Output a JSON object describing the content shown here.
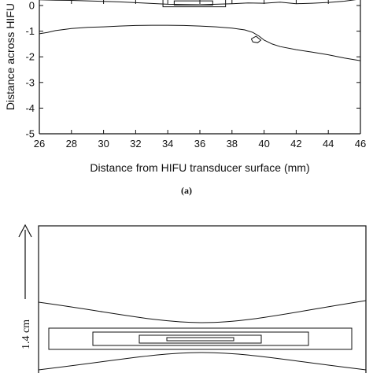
{
  "chart_data": [
    {
      "type": "line",
      "panel": "(a)",
      "title": "",
      "xlabel": "Distance from HIFU transducer surface (mm)",
      "ylabel": "Distance across HIFU",
      "xlim": [
        26,
        46
      ],
      "ylim": [
        -5,
        0.3
      ],
      "xticks": [
        26,
        28,
        30,
        32,
        34,
        36,
        38,
        40,
        42,
        44,
        46
      ],
      "yticks": [
        0,
        -1,
        -2,
        -3,
        -4,
        -5
      ],
      "grid": false,
      "legend": "none",
      "series": [
        {
          "x": [
            26,
            27,
            28,
            29,
            30,
            31,
            32,
            33,
            34,
            35,
            36,
            37,
            38,
            39,
            40,
            41,
            42,
            43,
            44,
            45,
            46
          ],
          "y": [
            0.22,
            0.21,
            0.2,
            0.18,
            0.16,
            0.14,
            0.11,
            0.08,
            0.05,
            0.04,
            0.03,
            0.05,
            0.07,
            0.1,
            0.09,
            0.13,
            0.07,
            0.09,
            0.12,
            0.17,
            0.25
          ]
        },
        {
          "x": [
            26,
            26.5,
            27,
            28,
            29,
            30,
            31,
            32,
            33,
            34,
            35,
            36,
            37,
            38,
            38.8,
            39.3,
            39.7,
            40,
            40.5,
            41,
            42,
            43,
            44,
            45,
            46
          ],
          "y": [
            -1.1,
            -1.05,
            -0.98,
            -0.9,
            -0.85,
            -0.83,
            -0.8,
            -0.78,
            -0.77,
            -0.77,
            -0.78,
            -0.8,
            -0.83,
            -0.88,
            -0.95,
            -1.05,
            -1.2,
            -1.35,
            -1.5,
            -1.6,
            -1.72,
            -1.82,
            -1.92,
            -2.05,
            -2.15
          ]
        },
        {
          "x": [
            39.2,
            39.5,
            39.8,
            39.6,
            39.3,
            39.2
          ],
          "y": [
            -1.3,
            -1.2,
            -1.35,
            -1.45,
            -1.42,
            -1.3
          ]
        }
      ],
      "rectangles": [
        {
          "x": [
            33.7,
            37.6
          ],
          "y": [
            -0.05,
            0.25
          ]
        },
        {
          "x": [
            34.4,
            36.8
          ],
          "y": [
            0.02,
            0.18
          ]
        }
      ]
    },
    {
      "type": "schematic",
      "scale_bar_label": "1.4 cm"
    }
  ],
  "panel_label": "(a)"
}
